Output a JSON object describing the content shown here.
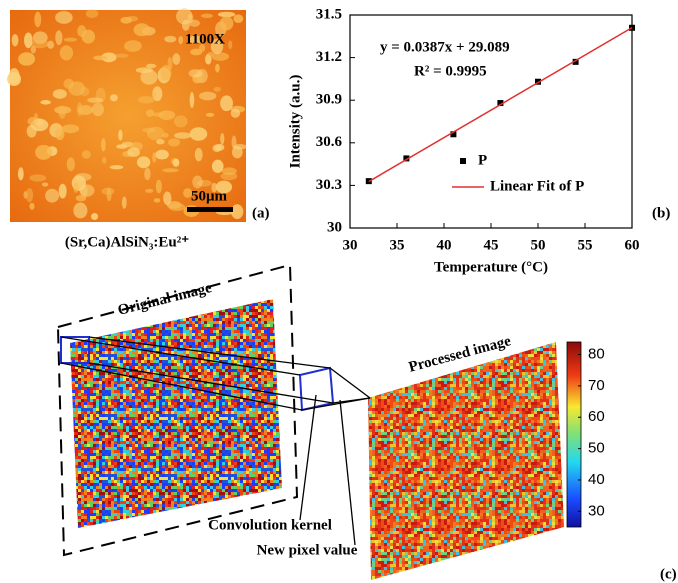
{
  "chart_data": {
    "type": "scatter",
    "x_label": "Temperature (°C)",
    "y_label": "Intensity (a.u.)",
    "annotations": [
      "y = 0.0387x + 29.089",
      "R² = 0.9995"
    ],
    "panel_label": "(b)",
    "xlim": [
      30,
      60
    ],
    "xticks": [
      30,
      35,
      40,
      45,
      50,
      55,
      60
    ],
    "ylim": [
      30,
      31.5
    ],
    "yticks": [
      30,
      30.3,
      30.6,
      30.9,
      31.2,
      31.5
    ],
    "series": [
      {
        "name": "P",
        "color": "#000000",
        "style": "marker",
        "x": [
          32,
          36,
          41,
          46,
          50,
          54,
          60
        ],
        "values": [
          30.33,
          30.49,
          30.66,
          30.88,
          31.03,
          31.17,
          31.41
        ]
      },
      {
        "name": "Linear Fit of P",
        "color": "#e03030",
        "style": "line",
        "x": [
          32,
          60
        ],
        "values": [
          30.327,
          31.411
        ]
      }
    ]
  },
  "panel_a": {
    "magnification": "1100X",
    "scale_bar": "50μm",
    "label": "(a)",
    "caption": "(Sr,Ca)AlSiN₃:Eu²⁺"
  },
  "panel_c": {
    "original": "Original image",
    "processed": "Processed image",
    "kernel": "Convolution kernel",
    "pixel": "New pixel value",
    "label": "(c)",
    "colorbar": {
      "lim": [
        25,
        84
      ],
      "ticks": [
        30,
        40,
        50,
        60,
        70,
        80
      ]
    }
  }
}
